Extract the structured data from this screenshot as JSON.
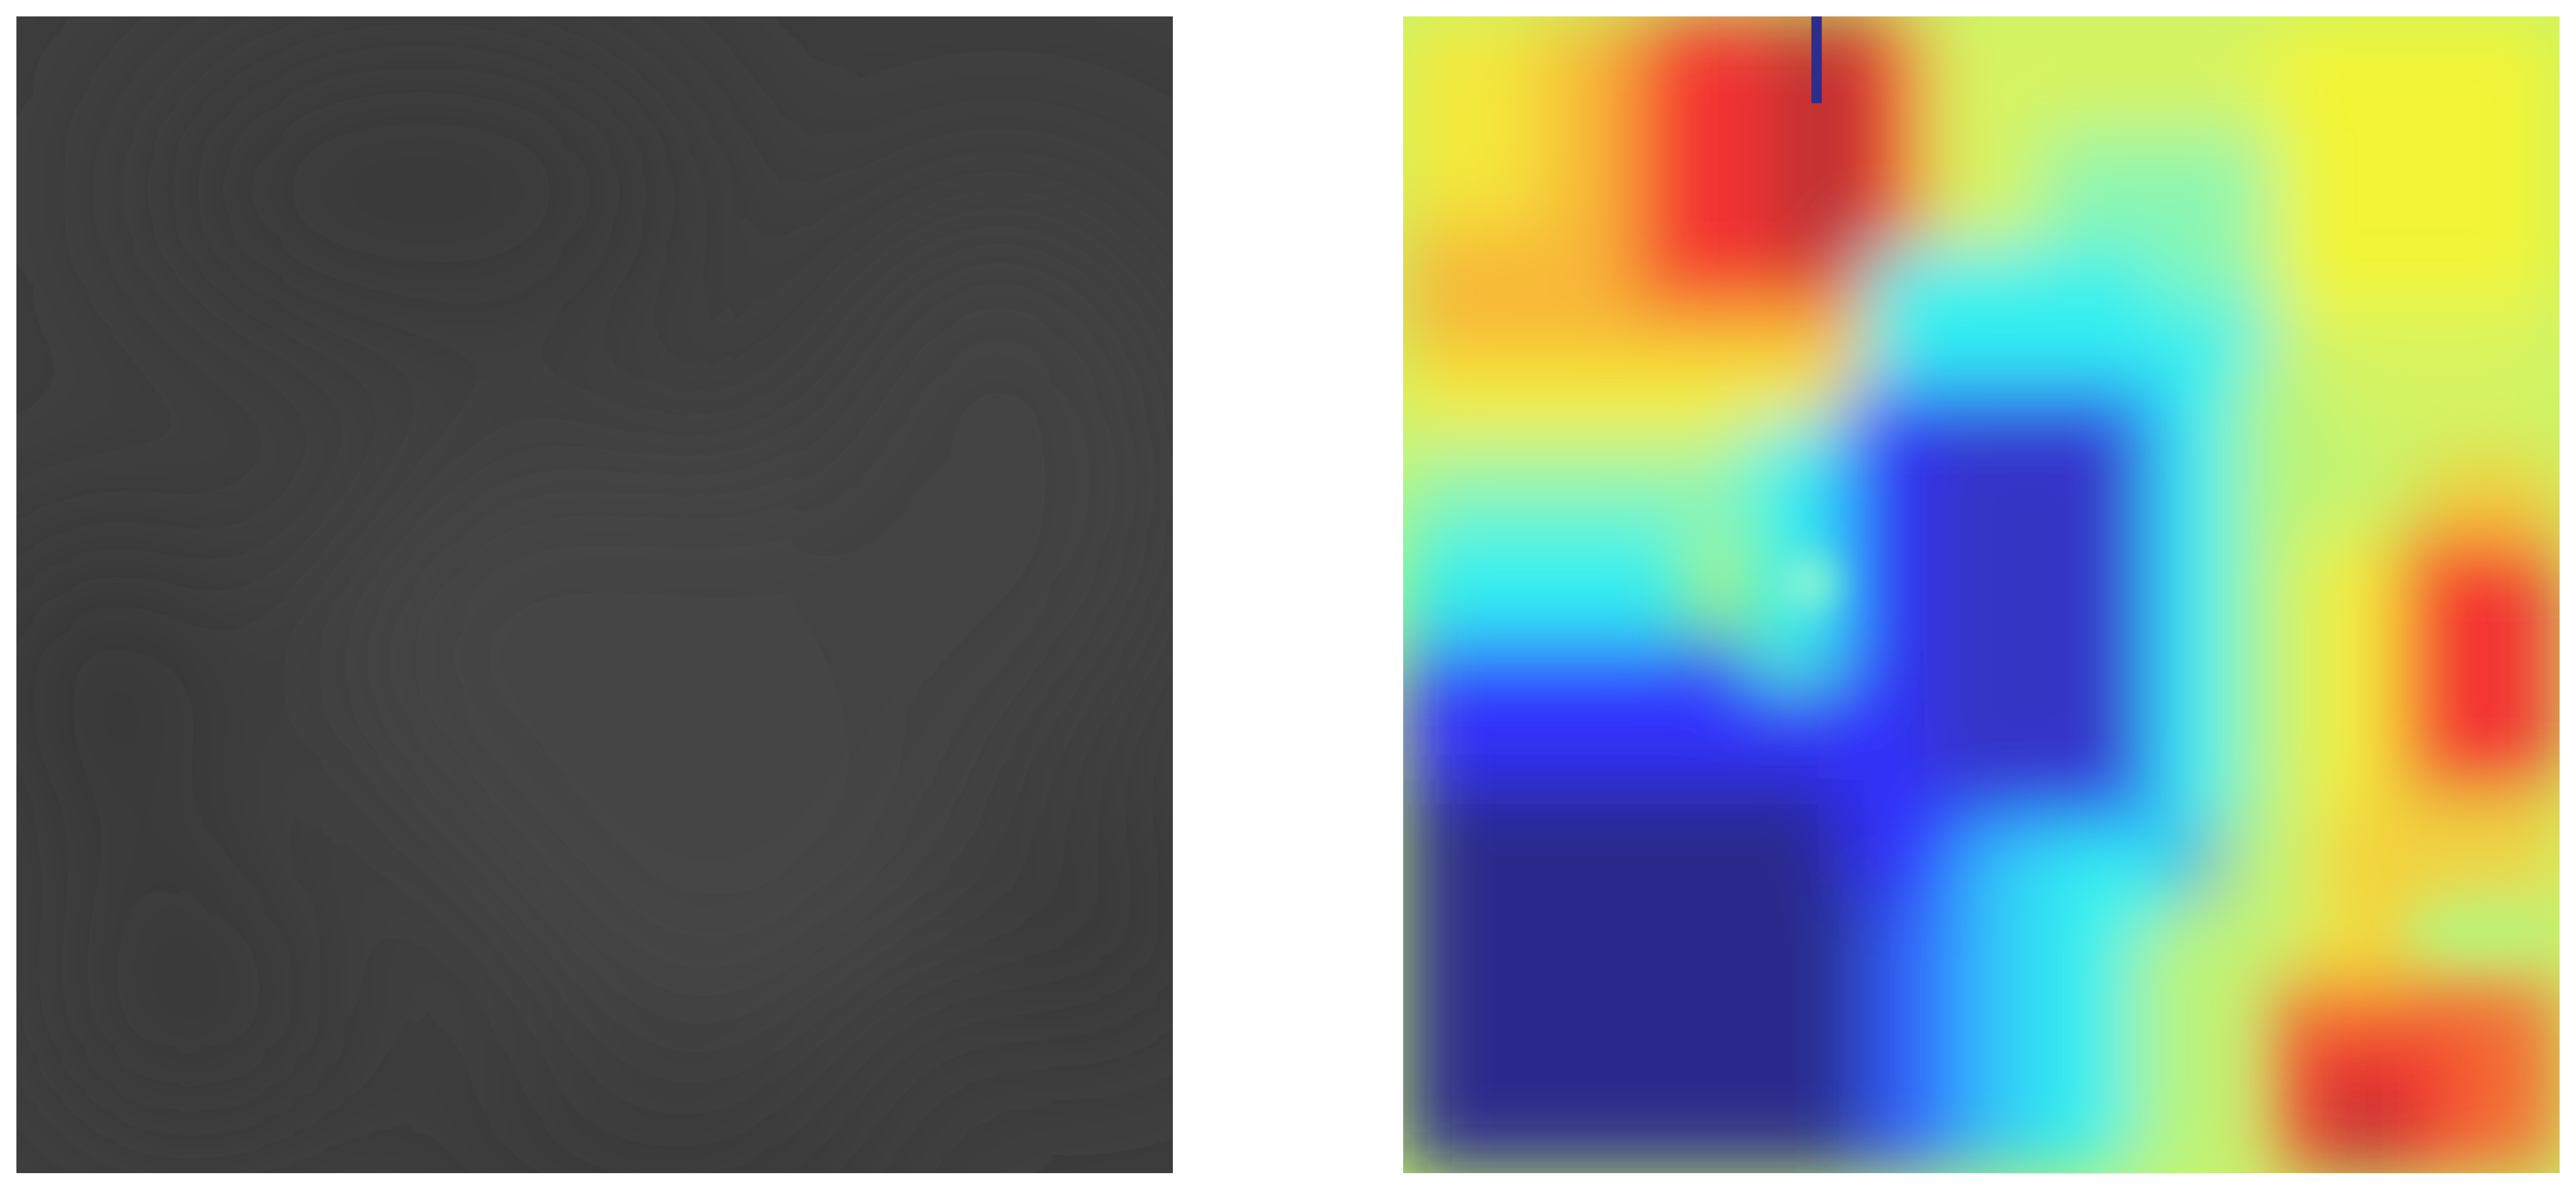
{
  "figure": {
    "panels": [
      {
        "id": "grayscale-input",
        "kind": "grayscale image",
        "base_color": "#3d3d3d",
        "highlight_color": "#4a4a4a",
        "shadow_color": "#363636"
      },
      {
        "id": "heatmap-overlay",
        "kind": "jet colormap heatmap",
        "colormap": [
          "#2c2c8c",
          "#3030ff",
          "#30f0f0",
          "#b8f47a",
          "#f4f03a",
          "#f89a38",
          "#f43030",
          "#b03030"
        ],
        "marker_color": "#2d2d8c"
      }
    ]
  }
}
